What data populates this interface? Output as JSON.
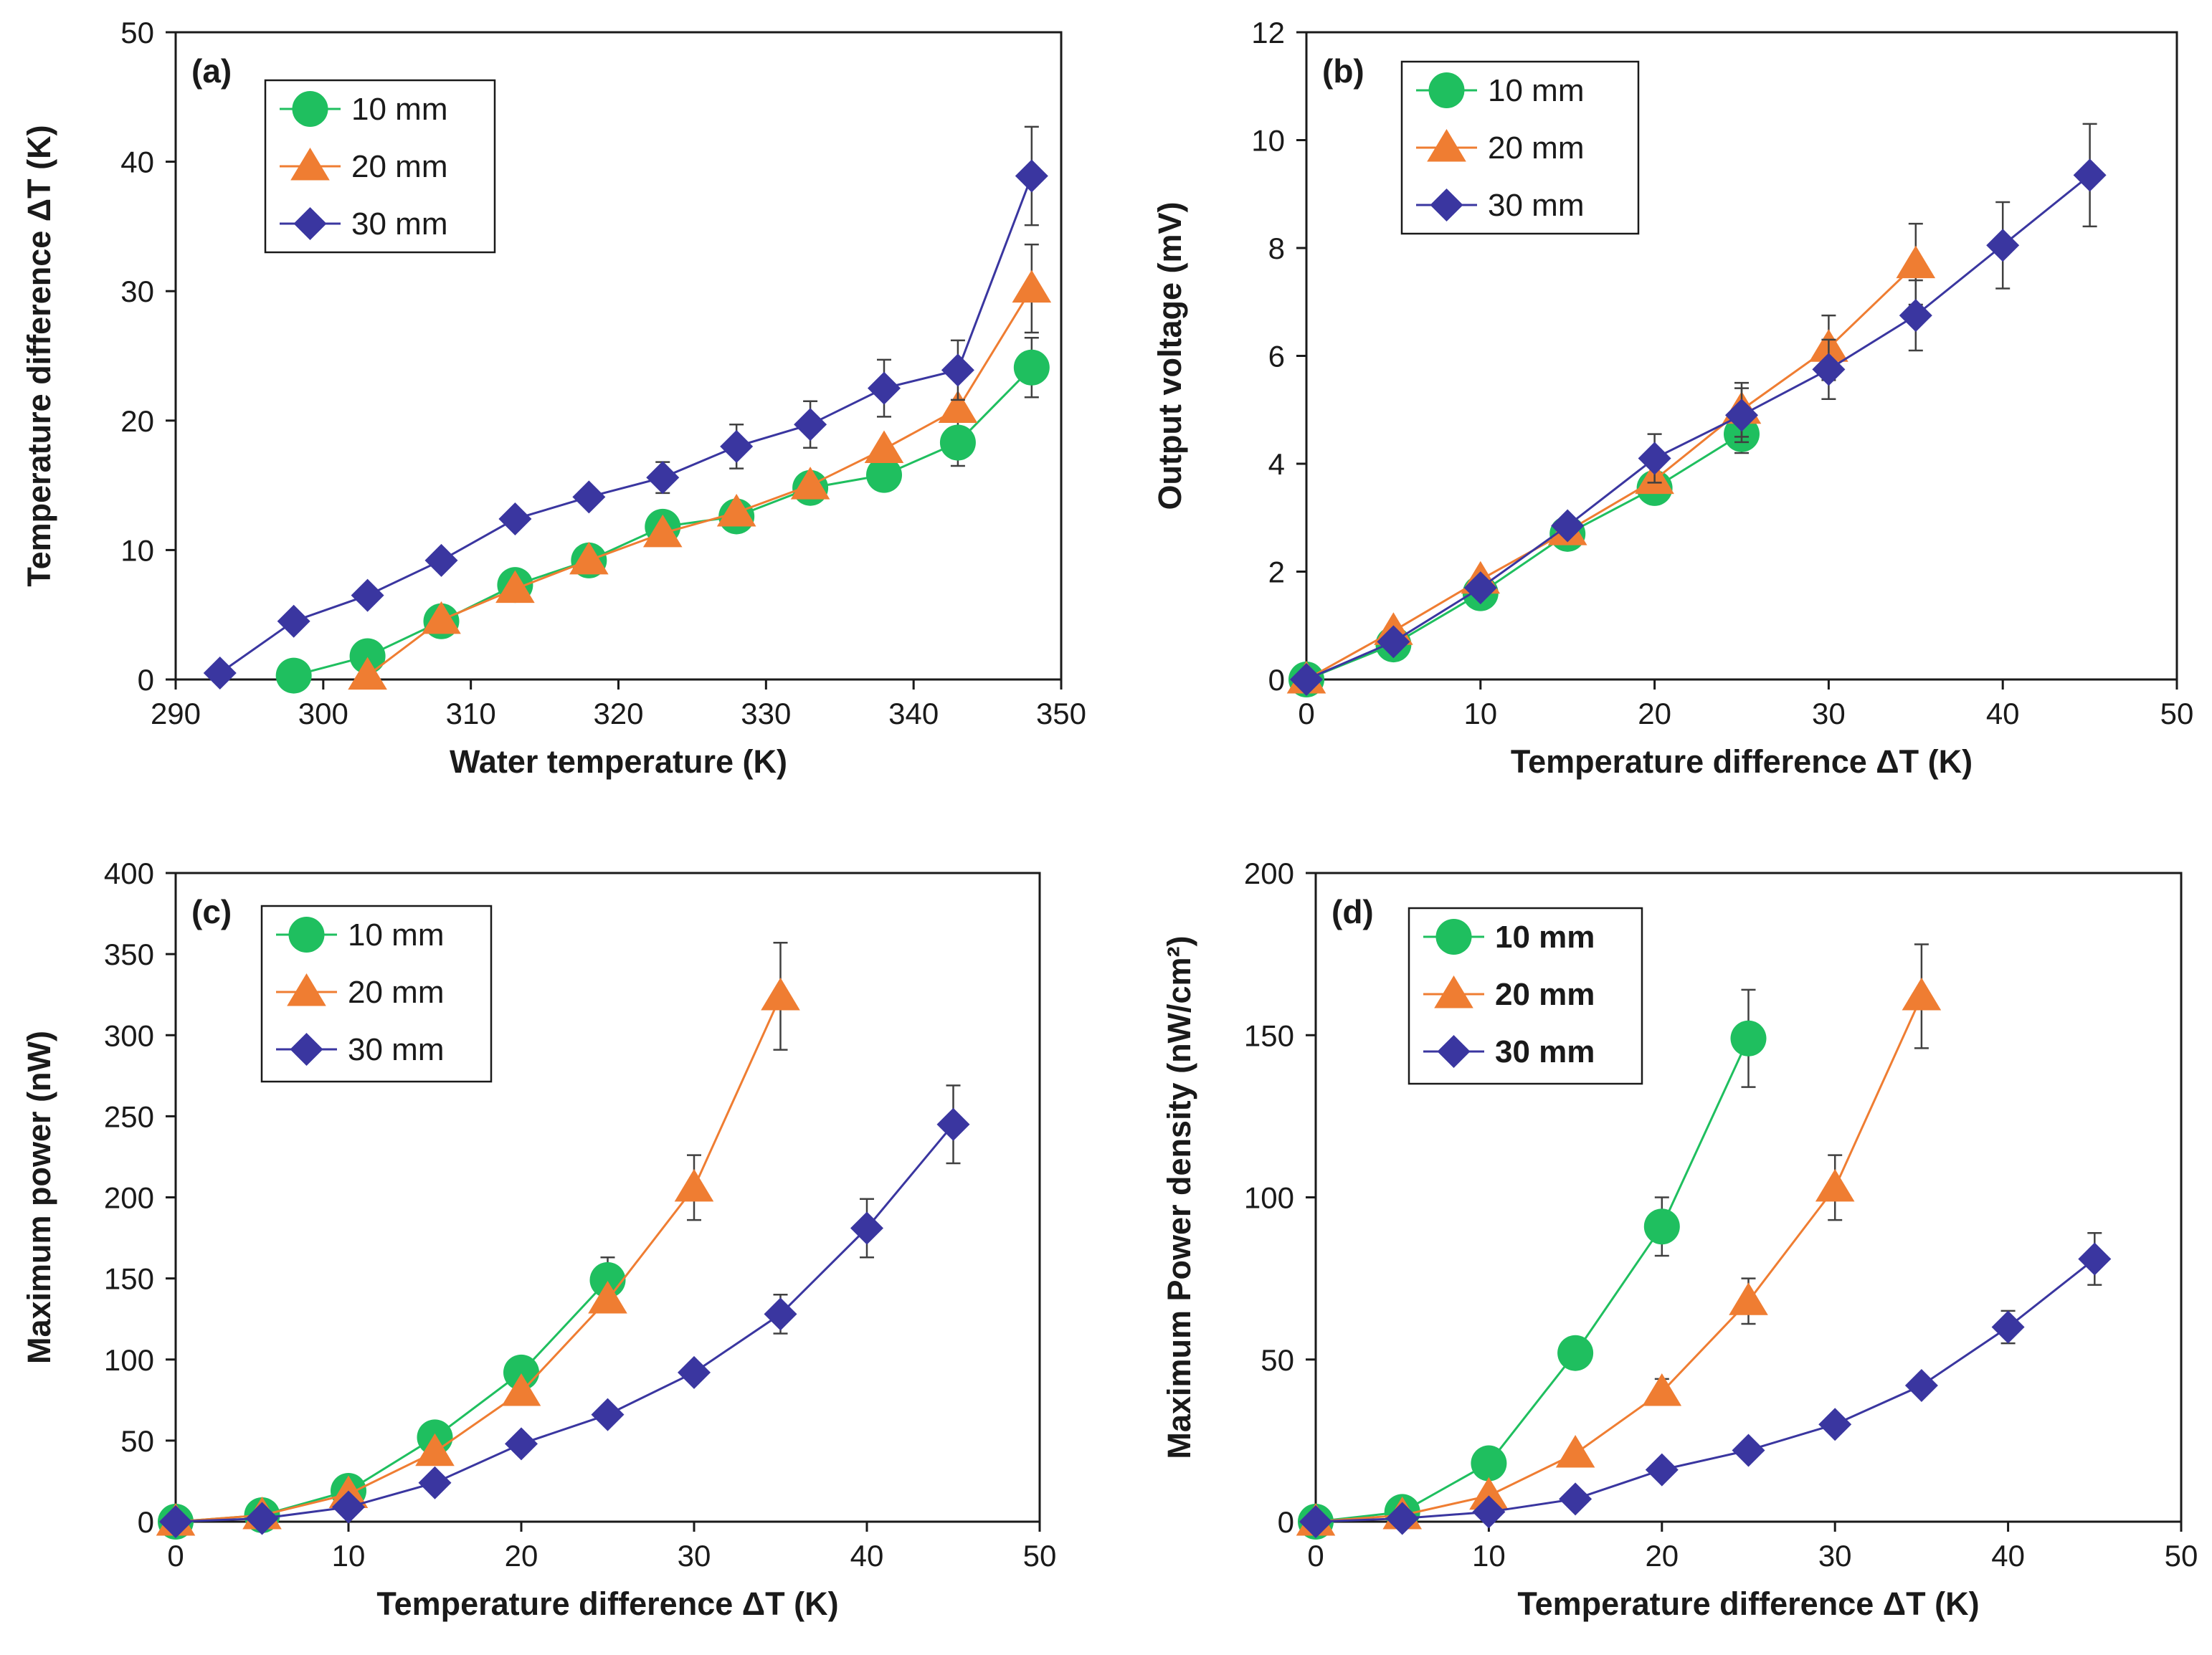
{
  "figure": {
    "colors": {
      "10 mm": "#1fbf5f",
      "20 mm": "#ef7d32",
      "30 mm": "#3a36a0",
      "axis": "#1a1a1a",
      "error": "#404040"
    }
  },
  "chart_data": [
    {
      "id": "a",
      "panel_label": "(a)",
      "type": "line",
      "title": "",
      "xlabel": "Water temperature (K)",
      "ylabel": "Temperature difference ΔT (K)",
      "xlim": [
        290,
        350
      ],
      "ylim": [
        0,
        50
      ],
      "xticks": [
        290,
        300,
        310,
        320,
        330,
        340,
        350
      ],
      "yticks": [
        0,
        10,
        20,
        30,
        40,
        50
      ],
      "legend_position": "top-left",
      "legend_bold": false,
      "series": [
        {
          "name": "10 mm",
          "marker": "circle",
          "color": "#1fbf5f",
          "x": [
            298,
            303,
            308,
            313,
            318,
            323,
            328,
            333,
            338,
            343,
            348
          ],
          "y": [
            0.3,
            1.8,
            4.5,
            7.3,
            9.2,
            11.8,
            12.6,
            14.8,
            15.8,
            18.3,
            24.1
          ],
          "err": [
            0,
            0,
            0,
            0,
            0,
            0,
            0,
            0,
            0,
            1.8,
            2.3
          ]
        },
        {
          "name": "20 mm",
          "marker": "triangle",
          "color": "#ef7d32",
          "x": [
            303,
            308,
            313,
            318,
            323,
            328,
            333,
            338,
            343,
            348
          ],
          "y": [
            0.3,
            4.6,
            7.0,
            9.2,
            11.3,
            12.9,
            15.0,
            17.8,
            20.9,
            30.2
          ],
          "err": [
            0,
            0,
            0,
            0,
            0,
            0,
            0,
            0,
            0,
            3.4
          ]
        },
        {
          "name": "30 mm",
          "marker": "diamond",
          "color": "#3a36a0",
          "x": [
            293,
            298,
            303,
            308,
            313,
            318,
            323,
            328,
            333,
            338,
            343,
            348
          ],
          "y": [
            0.5,
            4.5,
            6.5,
            9.2,
            12.4,
            14.1,
            15.6,
            18.0,
            19.7,
            22.5,
            23.9,
            38.9
          ],
          "err": [
            0,
            0,
            0,
            0,
            0,
            0,
            1.2,
            1.7,
            1.8,
            2.2,
            2.3,
            3.8
          ]
        }
      ]
    },
    {
      "id": "b",
      "panel_label": "(b)",
      "type": "line",
      "title": "",
      "xlabel": "Temperature difference ΔT (K)",
      "ylabel": "Output voltage (mV)",
      "xlim": [
        0,
        50
      ],
      "ylim": [
        0,
        12
      ],
      "xticks": [
        0,
        10,
        20,
        30,
        40,
        50
      ],
      "yticks": [
        0,
        2,
        4,
        6,
        8,
        10,
        12
      ],
      "legend_position": "top-left",
      "legend_bold": false,
      "series": [
        {
          "name": "10 mm",
          "marker": "circle",
          "color": "#1fbf5f",
          "x": [
            0,
            5,
            10,
            15,
            20,
            25
          ],
          "y": [
            0.0,
            0.65,
            1.6,
            2.7,
            3.55,
            4.55
          ],
          "err": [
            0,
            0,
            0,
            0,
            0,
            0.35
          ]
        },
        {
          "name": "20 mm",
          "marker": "triangle",
          "color": "#ef7d32",
          "x": [
            0,
            5,
            10,
            15,
            20,
            25,
            30,
            35
          ],
          "y": [
            0.0,
            0.9,
            1.85,
            2.75,
            3.7,
            5.0,
            6.15,
            7.7
          ],
          "err": [
            0,
            0,
            0,
            0,
            0,
            0.5,
            0.6,
            0.75
          ]
        },
        {
          "name": "30 mm",
          "marker": "diamond",
          "color": "#3a36a0",
          "x": [
            0,
            5,
            10,
            15,
            20,
            25,
            30,
            35,
            40,
            45
          ],
          "y": [
            0.0,
            0.7,
            1.7,
            2.85,
            4.1,
            4.9,
            5.75,
            6.75,
            8.05,
            9.35
          ],
          "err": [
            0,
            0,
            0,
            0,
            0.45,
            0.5,
            0.55,
            0.65,
            0.8,
            0.95
          ]
        }
      ]
    },
    {
      "id": "c",
      "panel_label": "(c)",
      "type": "line",
      "title": "",
      "xlabel": "Temperature difference ΔT (K)",
      "ylabel": "Maximum power (nW)",
      "xlim": [
        0,
        50
      ],
      "ylim": [
        0,
        400
      ],
      "xticks": [
        0,
        10,
        20,
        30,
        40,
        50
      ],
      "yticks": [
        0,
        50,
        100,
        150,
        200,
        250,
        300,
        350,
        400
      ],
      "legend_position": "top-left",
      "legend_bold": false,
      "series": [
        {
          "name": "10 mm",
          "marker": "circle",
          "color": "#1fbf5f",
          "x": [
            0,
            5,
            10,
            15,
            20,
            25
          ],
          "y": [
            0,
            4,
            19,
            52,
            92,
            149
          ],
          "err": [
            0,
            0,
            0,
            0,
            0,
            14
          ]
        },
        {
          "name": "20 mm",
          "marker": "triangle",
          "color": "#ef7d32",
          "x": [
            0,
            5,
            10,
            15,
            20,
            25,
            30,
            35
          ],
          "y": [
            0,
            4,
            17,
            43,
            80,
            137,
            206,
            324
          ],
          "err": [
            0,
            0,
            0,
            0,
            0,
            0,
            20,
            33
          ]
        },
        {
          "name": "30 mm",
          "marker": "diamond",
          "color": "#3a36a0",
          "x": [
            0,
            5,
            10,
            15,
            20,
            25,
            30,
            35,
            40,
            45
          ],
          "y": [
            0,
            2,
            9,
            24,
            48,
            66,
            92,
            128,
            181,
            245
          ],
          "err": [
            0,
            0,
            0,
            0,
            0,
            0,
            0,
            12,
            18,
            24
          ]
        }
      ]
    },
    {
      "id": "d",
      "panel_label": "(d)",
      "type": "line",
      "title": "",
      "xlabel": "Temperature difference ΔT (K)",
      "ylabel": "Maximum Power density (nW/cm²)",
      "xlim": [
        0,
        50
      ],
      "ylim": [
        0,
        200
      ],
      "xticks": [
        0,
        10,
        20,
        30,
        40,
        50
      ],
      "yticks": [
        0,
        50,
        100,
        150,
        200
      ],
      "legend_position": "top-left",
      "legend_bold": true,
      "series": [
        {
          "name": "10 mm",
          "marker": "circle",
          "color": "#1fbf5f",
          "x": [
            0,
            5,
            10,
            15,
            20,
            25
          ],
          "y": [
            0,
            3,
            18,
            52,
            91,
            149
          ],
          "err": [
            0,
            0,
            0,
            0,
            9,
            15
          ]
        },
        {
          "name": "20 mm",
          "marker": "triangle",
          "color": "#ef7d32",
          "x": [
            0,
            5,
            10,
            15,
            20,
            25,
            30,
            35
          ],
          "y": [
            0,
            2,
            8,
            21,
            40,
            68,
            103,
            162
          ],
          "err": [
            0,
            0,
            0,
            0,
            4,
            7,
            10,
            16
          ]
        },
        {
          "name": "30 mm",
          "marker": "diamond",
          "color": "#3a36a0",
          "x": [
            0,
            5,
            10,
            15,
            20,
            25,
            30,
            35,
            40,
            45
          ],
          "y": [
            0,
            1,
            3,
            7,
            16,
            22,
            30,
            42,
            60,
            81
          ],
          "err": [
            0,
            0,
            0,
            0,
            0,
            0,
            0,
            0,
            5,
            8
          ]
        }
      ]
    }
  ]
}
